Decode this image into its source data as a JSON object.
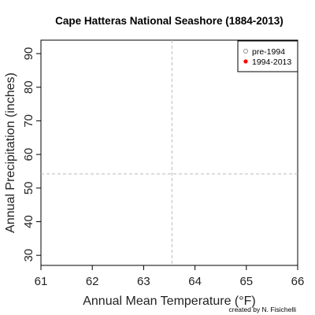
{
  "chart_data": {
    "type": "scatter",
    "title": "Cape Hatteras National Seashore (1884-2013)",
    "xlabel": "Annual Mean Temperature (°F)",
    "ylabel": "Annual Precipitation (inches)",
    "xlim": [
      61,
      66
    ],
    "ylim": [
      27,
      94
    ],
    "x_ticks": [
      61,
      62,
      63,
      64,
      65,
      66
    ],
    "y_ticks": [
      30,
      40,
      50,
      60,
      70,
      80,
      90
    ],
    "reference_lines": {
      "mean_temperature": 63.55,
      "mean_precipitation": 54.2
    },
    "series": [
      {
        "name": "pre-1994",
        "marker": "open-circle",
        "color": "#999999",
        "points": []
      },
      {
        "name": "1994-2013",
        "marker": "filled-circle",
        "color": "#ff0000",
        "points": []
      }
    ],
    "legend_position": "top-right",
    "grid": false,
    "credit": "created by N. Fisichelli"
  }
}
